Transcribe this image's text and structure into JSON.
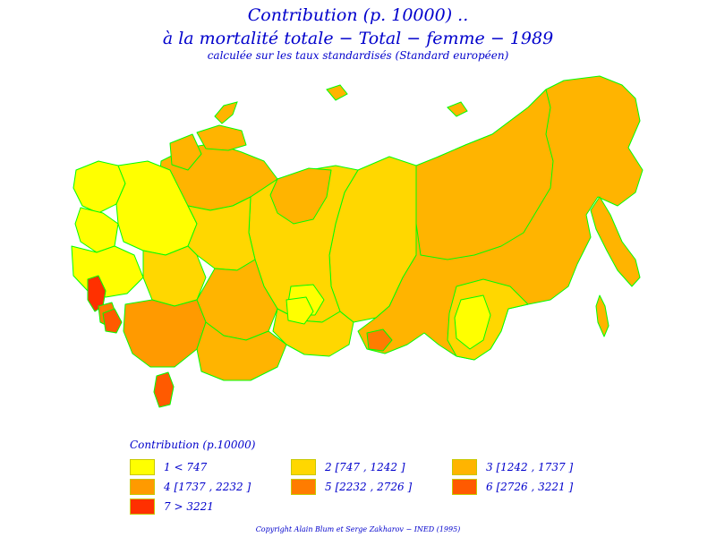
{
  "title": {
    "line1": "Contribution  (p. 10000) ..",
    "line2": "à  la  mortalité  totale  −  Total  −  femme  −  1989",
    "line3": "calculée sur les taux standardisés (Standard européen)"
  },
  "legend": {
    "title": "Contribution  (p.10000)",
    "items": [
      {
        "label": "1  <  747",
        "color": "#ffff00"
      },
      {
        "label": "2  [747  ,  1242  ]",
        "color": "#ffd700"
      },
      {
        "label": "3  [1242  ,  1737  ]",
        "color": "#ffb400"
      },
      {
        "label": "4  [1737  ,  2232  ]",
        "color": "#ff9a00"
      },
      {
        "label": "5  [2232  ,  2726  ]",
        "color": "#ff7c00"
      },
      {
        "label": "6  [2726  ,  3221  ]",
        "color": "#ff5a00"
      },
      {
        "label": "7  >  3221",
        "color": "#ff3000"
      }
    ]
  },
  "map": {
    "border_color": "#00ff00"
  },
  "copyright": "Copyright  Alain  Blum  et  Serge  Zakharov  −  INED  (1995)"
}
